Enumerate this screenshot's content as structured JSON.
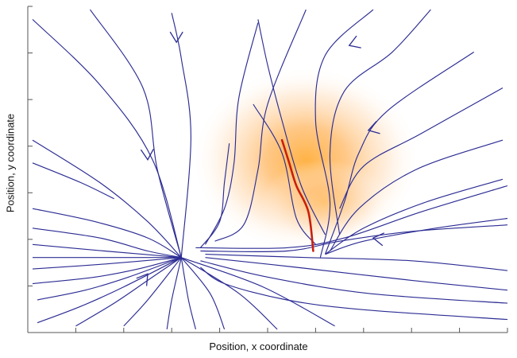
{
  "chart_data": {
    "type": "vector-field",
    "title": "",
    "xlabel": "Position, x coordinate",
    "ylabel": "Position, y coordinate",
    "xlim": [
      0,
      10
    ],
    "ylim": [
      0,
      10
    ],
    "grid": false,
    "legend": "none",
    "colors": {
      "streamline": "#2c2c94",
      "trajectory": "#c8200f",
      "density_peak": "#ff9c3a",
      "axis": "#555555"
    },
    "density": {
      "peak": [
        5.8,
        5.3
      ],
      "spread": [
        1.5,
        2.6
      ]
    },
    "sink": [
      3.2,
      2.3
    ],
    "trajectory": [
      [
        5.3,
        5.9
      ],
      [
        5.45,
        5.2
      ],
      [
        5.6,
        4.5
      ],
      [
        5.85,
        3.7
      ],
      [
        5.95,
        2.5
      ]
    ],
    "streamlines": [
      [
        [
          0.1,
          9.6
        ],
        [
          1.5,
          7.6
        ],
        [
          2.6,
          5.3
        ],
        [
          3.2,
          2.3
        ]
      ],
      [
        [
          0.1,
          5.9
        ],
        [
          1.5,
          4.6
        ],
        [
          2.5,
          3.4
        ],
        [
          3.2,
          2.3
        ]
      ],
      [
        [
          0.1,
          5.2
        ],
        [
          1.1,
          4.6
        ],
        [
          1.8,
          4.1
        ]
      ],
      [
        [
          0.1,
          3.8
        ],
        [
          1.4,
          3.4
        ],
        [
          2.5,
          2.9
        ],
        [
          3.2,
          2.3
        ]
      ],
      [
        [
          0.1,
          3.2
        ],
        [
          1.5,
          2.9
        ],
        [
          2.5,
          2.5
        ],
        [
          3.2,
          2.3
        ]
      ],
      [
        [
          0.1,
          2.7
        ],
        [
          1.6,
          2.5
        ],
        [
          3.2,
          2.3
        ]
      ],
      [
        [
          0.1,
          2.3
        ],
        [
          1.6,
          2.3
        ],
        [
          3.2,
          2.3
        ]
      ],
      [
        [
          0.1,
          1.95
        ],
        [
          1.6,
          2.1
        ],
        [
          3.2,
          2.3
        ]
      ],
      [
        [
          0.1,
          1.5
        ],
        [
          1.4,
          1.7
        ],
        [
          2.3,
          1.95
        ],
        [
          3.2,
          2.3
        ]
      ],
      [
        [
          0.2,
          1.0
        ],
        [
          1.2,
          1.3
        ],
        [
          2.1,
          1.7
        ],
        [
          3.2,
          2.3
        ]
      ],
      [
        [
          0.2,
          0.3
        ],
        [
          1.1,
          0.8
        ],
        [
          2.0,
          1.4
        ],
        [
          3.2,
          2.3
        ]
      ],
      [
        [
          1.0,
          0.2
        ],
        [
          1.8,
          0.9
        ],
        [
          2.5,
          1.6
        ],
        [
          3.2,
          2.3
        ]
      ],
      [
        [
          2.0,
          0.2
        ],
        [
          2.5,
          1.0
        ],
        [
          3.2,
          2.3
        ]
      ],
      [
        [
          2.9,
          0.1
        ],
        [
          3.0,
          1.0
        ],
        [
          3.2,
          2.3
        ]
      ],
      [
        [
          3.5,
          0.1
        ],
        [
          3.35,
          1.0
        ],
        [
          3.2,
          2.3
        ]
      ],
      [
        [
          4.1,
          0.1
        ],
        [
          3.8,
          1.2
        ],
        [
          3.2,
          2.3
        ]
      ],
      [
        [
          5.2,
          0.1
        ],
        [
          4.4,
          1.2
        ],
        [
          3.2,
          2.3
        ]
      ],
      [
        [
          6.4,
          0.2
        ],
        [
          4.9,
          1.4
        ],
        [
          3.2,
          2.3
        ]
      ],
      [
        [
          1.3,
          9.9
        ],
        [
          2.4,
          7.5
        ],
        [
          2.7,
          5.0
        ],
        [
          3.2,
          2.3
        ]
      ],
      [
        [
          3.0,
          9.8
        ],
        [
          3.2,
          8.4
        ],
        [
          3.4,
          6.0
        ],
        [
          3.2,
          2.3
        ]
      ],
      [
        [
          3.6,
          2.0
        ],
        [
          4.1,
          1.5
        ],
        [
          5.4,
          1.0
        ],
        [
          7.0,
          0.7
        ],
        [
          10.0,
          0.4
        ]
      ],
      [
        [
          3.6,
          2.2
        ],
        [
          5.0,
          1.7
        ],
        [
          7.1,
          1.2
        ],
        [
          10.0,
          0.9
        ]
      ],
      [
        [
          3.7,
          2.3
        ],
        [
          5.6,
          2.0
        ],
        [
          8.0,
          1.6
        ],
        [
          10.0,
          1.3
        ]
      ],
      [
        [
          3.7,
          2.4
        ],
        [
          5.8,
          2.3
        ],
        [
          8.0,
          2.2
        ],
        [
          10.0,
          1.9
        ]
      ],
      [
        [
          3.6,
          2.5
        ],
        [
          5.4,
          2.5
        ],
        [
          6.5,
          2.8
        ],
        [
          8.0,
          3.1
        ],
        [
          10.0,
          3.3
        ]
      ],
      [
        [
          3.5,
          2.6
        ],
        [
          5.4,
          2.6
        ],
        [
          6.6,
          2.9
        ],
        [
          8.2,
          3.7
        ],
        [
          10.0,
          4.5
        ]
      ],
      [
        [
          3.9,
          2.8
        ],
        [
          4.5,
          3.3
        ],
        [
          4.8,
          5.0
        ],
        [
          5.0,
          7.0
        ],
        [
          5.8,
          9.9
        ]
      ],
      [
        [
          3.7,
          2.7
        ],
        [
          4.1,
          3.8
        ],
        [
          4.3,
          5.2
        ],
        [
          4.4,
          7.2
        ],
        [
          4.8,
          9.5
        ]
      ],
      [
        [
          3.6,
          2.6
        ],
        [
          4.0,
          3.4
        ],
        [
          4.1,
          4.6
        ],
        [
          4.2,
          5.8
        ]
      ],
      [
        [
          7.2,
          9.9
        ],
        [
          6.2,
          8.5
        ],
        [
          6.0,
          6.5
        ],
        [
          6.3,
          4.0
        ],
        [
          6.1,
          2.3
        ]
      ],
      [
        [
          8.4,
          9.9
        ],
        [
          7.6,
          8.6
        ],
        [
          6.6,
          7.4
        ],
        [
          6.3,
          5.5
        ],
        [
          6.5,
          3.0
        ]
      ],
      [
        [
          9.3,
          8.6
        ],
        [
          7.5,
          6.8
        ],
        [
          6.9,
          5.5
        ],
        [
          6.6,
          4.0
        ],
        [
          6.2,
          2.4
        ]
      ],
      [
        [
          9.9,
          7.5
        ],
        [
          8.2,
          6.1
        ],
        [
          7.0,
          5.1
        ],
        [
          6.5,
          3.8
        ]
      ],
      [
        [
          9.9,
          4.7
        ],
        [
          8.3,
          4.0
        ],
        [
          7.0,
          3.2
        ],
        [
          6.2,
          2.4
        ]
      ],
      [
        [
          9.9,
          5.9
        ],
        [
          8.1,
          5.0
        ],
        [
          6.9,
          3.8
        ],
        [
          6.3,
          2.5
        ]
      ],
      [
        [
          10.0,
          3.5
        ],
        [
          8.5,
          3.2
        ],
        [
          7.0,
          2.8
        ],
        [
          6.2,
          2.4
        ]
      ],
      [
        [
          6.2,
          3.0
        ],
        [
          5.7,
          4.5
        ],
        [
          5.3,
          6.5
        ],
        [
          5.0,
          8.2
        ],
        [
          4.8,
          9.6
        ]
      ],
      [
        [
          6.0,
          2.7
        ],
        [
          5.6,
          3.5
        ],
        [
          5.3,
          5.5
        ],
        [
          4.7,
          7.0
        ]
      ]
    ],
    "arrows": [
      {
        "at": [
          3.1,
          8.9
        ],
        "dir": [
          0,
          -1
        ]
      },
      {
        "at": [
          2.5,
          5.3
        ],
        "dir": [
          0.05,
          -1
        ]
      },
      {
        "at": [
          6.7,
          8.8
        ],
        "dir": [
          -0.8,
          -0.3
        ]
      },
      {
        "at": [
          7.1,
          6.2
        ],
        "dir": [
          -0.7,
          -0.2
        ]
      },
      {
        "at": [
          7.2,
          2.9
        ],
        "dir": [
          -0.8,
          0.1
        ]
      },
      {
        "at": [
          2.5,
          1.8
        ],
        "dir": [
          0.6,
          0.8
        ]
      }
    ]
  }
}
